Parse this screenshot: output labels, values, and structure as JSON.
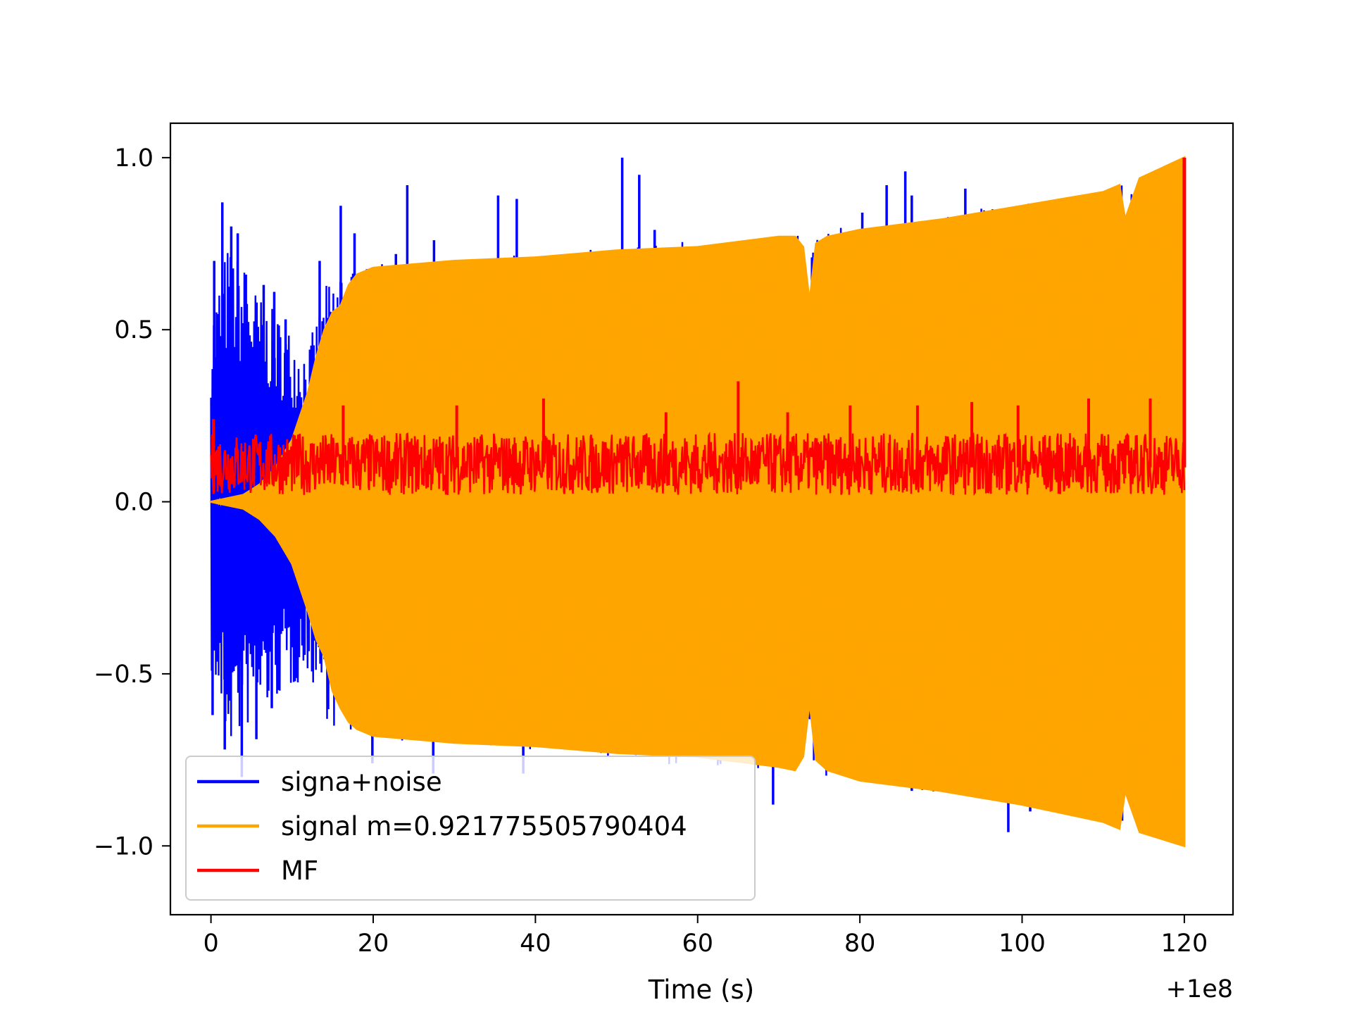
{
  "chart_data": {
    "type": "line",
    "title": "",
    "xlabel": "Time (s)",
    "ylabel": "",
    "x_offset_label": "+1e8",
    "xlim": [
      -5,
      126
    ],
    "ylim": [
      -1.2,
      1.1
    ],
    "x_ticks": [
      0,
      20,
      40,
      60,
      80,
      100,
      120
    ],
    "x_tick_labels": [
      "0",
      "20",
      "40",
      "60",
      "80",
      "100",
      "120"
    ],
    "y_ticks": [
      1.0,
      0.5,
      0.0,
      -0.5,
      -1.0
    ],
    "y_tick_labels": [
      "1.0",
      "0.5",
      "0.0",
      "−0.5",
      "−1.0"
    ],
    "grid": false,
    "legend_position": "lower-left",
    "series": [
      {
        "name": "signa+noise",
        "color": "#0000ff",
        "envelope": {
          "x": [
            0,
            2,
            4,
            6,
            8,
            10,
            12,
            14,
            16,
            18,
            20,
            30,
            40,
            50,
            60,
            70,
            80,
            90,
            100,
            110,
            120
          ],
          "upper": [
            0.55,
            0.75,
            0.7,
            0.6,
            0.55,
            0.5,
            0.45,
            0.62,
            0.72,
            0.66,
            0.69,
            0.71,
            0.72,
            0.74,
            0.76,
            0.78,
            0.81,
            0.84,
            0.87,
            0.91,
            0.95
          ],
          "lower": [
            -0.5,
            -0.72,
            -0.68,
            -0.62,
            -0.58,
            -0.55,
            -0.5,
            -0.62,
            -0.7,
            -0.68,
            -0.69,
            -0.71,
            -0.73,
            -0.75,
            -0.77,
            -0.79,
            -0.82,
            -0.85,
            -0.88,
            -0.92,
            -0.96
          ]
        },
        "spikes": [
          {
            "x": 0.4,
            "y": 0.7
          },
          {
            "x": 1.4,
            "y": 0.87
          },
          {
            "x": 2.5,
            "y": 0.8
          },
          {
            "x": 3.3,
            "y": 0.78
          },
          {
            "x": 4.3,
            "y": 0.66
          },
          {
            "x": 6.5,
            "y": 0.63
          },
          {
            "x": 7.8,
            "y": 0.61
          },
          {
            "x": 9.2,
            "y": 0.53
          },
          {
            "x": 13.4,
            "y": 0.7
          },
          {
            "x": 16.0,
            "y": 0.86
          },
          {
            "x": 17.7,
            "y": 0.78
          },
          {
            "x": 22.8,
            "y": 0.72
          },
          {
            "x": 24.2,
            "y": 0.92
          },
          {
            "x": 27.5,
            "y": 0.76
          },
          {
            "x": 35.4,
            "y": 0.89
          },
          {
            "x": 37.7,
            "y": 0.88
          },
          {
            "x": 50.7,
            "y": 1.0
          },
          {
            "x": 52.8,
            "y": 0.95
          },
          {
            "x": 54.7,
            "y": 0.79
          },
          {
            "x": 80.3,
            "y": 0.84
          },
          {
            "x": 83.3,
            "y": 0.92
          },
          {
            "x": 85.6,
            "y": 0.96
          },
          {
            "x": 86.4,
            "y": 0.89
          },
          {
            "x": 93.0,
            "y": 0.91
          },
          {
            "x": 0.2,
            "y": -0.62
          },
          {
            "x": 1.7,
            "y": -0.72
          },
          {
            "x": 3.8,
            "y": -0.8
          },
          {
            "x": 5.6,
            "y": -0.69
          },
          {
            "x": 7.5,
            "y": -0.6
          },
          {
            "x": 19.9,
            "y": -0.76
          },
          {
            "x": 27.4,
            "y": -0.79
          },
          {
            "x": 38.5,
            "y": -0.79
          },
          {
            "x": 69.3,
            "y": -0.88
          },
          {
            "x": 86.4,
            "y": -0.84
          },
          {
            "x": 98.3,
            "y": -0.96
          },
          {
            "x": 101.0,
            "y": -0.9
          }
        ]
      },
      {
        "name": "signal m=0.921775505790404",
        "color": "#ffa500",
        "envelope": {
          "x": [
            0,
            2,
            4,
            6,
            8,
            10,
            12,
            13,
            14,
            15,
            16,
            17,
            18,
            19,
            20,
            30,
            40,
            50,
            60,
            70,
            72,
            73,
            73.8,
            74.6,
            76,
            80,
            90,
            100,
            110,
            112,
            112.7,
            113.3,
            114.5,
            120
          ],
          "upper": [
            0.0,
            0.01,
            0.02,
            0.05,
            0.1,
            0.18,
            0.32,
            0.42,
            0.5,
            0.55,
            0.57,
            0.63,
            0.66,
            0.67,
            0.68,
            0.7,
            0.71,
            0.73,
            0.74,
            0.77,
            0.77,
            0.74,
            0.58,
            0.75,
            0.77,
            0.79,
            0.82,
            0.86,
            0.9,
            0.92,
            0.82,
            0.86,
            0.94,
            1.0
          ],
          "lower": [
            0.0,
            -0.01,
            -0.02,
            -0.05,
            -0.1,
            -0.18,
            -0.32,
            -0.4,
            -0.45,
            -0.55,
            -0.6,
            -0.64,
            -0.66,
            -0.67,
            -0.68,
            -0.7,
            -0.71,
            -0.73,
            -0.74,
            -0.77,
            -0.78,
            -0.74,
            -0.58,
            -0.75,
            -0.78,
            -0.81,
            -0.84,
            -0.88,
            -0.93,
            -0.95,
            -0.84,
            -0.88,
            -0.96,
            -1.0
          ]
        }
      },
      {
        "name": "MF",
        "color": "#ff0000",
        "baseline": 0.1,
        "band": [
          0.02,
          0.2
        ],
        "peak": {
          "x": 120.0,
          "y": 1.0
        },
        "spikes": [
          {
            "x": 0.3,
            "y": 0.24
          },
          {
            "x": 16.3,
            "y": 0.28
          },
          {
            "x": 30.3,
            "y": 0.28
          },
          {
            "x": 41.0,
            "y": 0.3
          },
          {
            "x": 56.1,
            "y": 0.26
          },
          {
            "x": 65.0,
            "y": 0.35
          },
          {
            "x": 71.1,
            "y": 0.26
          },
          {
            "x": 78.8,
            "y": 0.28
          },
          {
            "x": 87.1,
            "y": 0.28
          },
          {
            "x": 93.8,
            "y": 0.29
          },
          {
            "x": 99.5,
            "y": 0.28
          },
          {
            "x": 108.2,
            "y": 0.3
          },
          {
            "x": 115.8,
            "y": 0.3
          }
        ]
      }
    ]
  }
}
